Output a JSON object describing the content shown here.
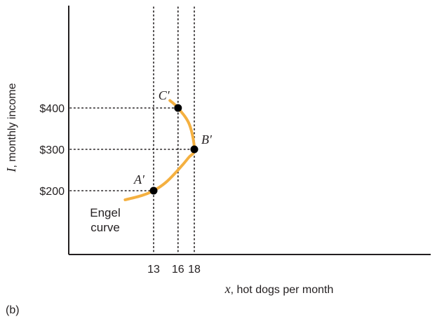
{
  "chart_data": {
    "type": "line",
    "title": "",
    "xlabel": {
      "var": "x",
      "text": ", hot dogs per month"
    },
    "ylabel": {
      "var": "I",
      "text": ", monthly income"
    },
    "x_ticks": [
      13,
      16,
      18
    ],
    "x_tick_labels": [
      "13",
      "16",
      "18"
    ],
    "y_ticks": [
      200,
      300,
      400
    ],
    "y_tick_labels": [
      "$200",
      "$300",
      "$400"
    ],
    "grid": false,
    "series": [
      {
        "name": "Engel curve",
        "color": "#f4b040",
        "x": [
          9.5,
          11.5,
          13,
          14.5,
          16,
          17.3,
          18,
          17.4,
          16,
          15
        ],
        "y": [
          178,
          188,
          200,
          220,
          250,
          280,
          300,
          360,
          400,
          418
        ]
      }
    ],
    "points": [
      {
        "label": "A′",
        "x": 13,
        "y": 200
      },
      {
        "label": "B′",
        "x": 18,
        "y": 300
      },
      {
        "label": "C′",
        "x": 16,
        "y": 400
      }
    ],
    "annotation": "Engel curve",
    "panel_label": "(b)"
  },
  "colors": {
    "curve": "#f4b040",
    "axis": "#231f20",
    "point": "#000000"
  }
}
